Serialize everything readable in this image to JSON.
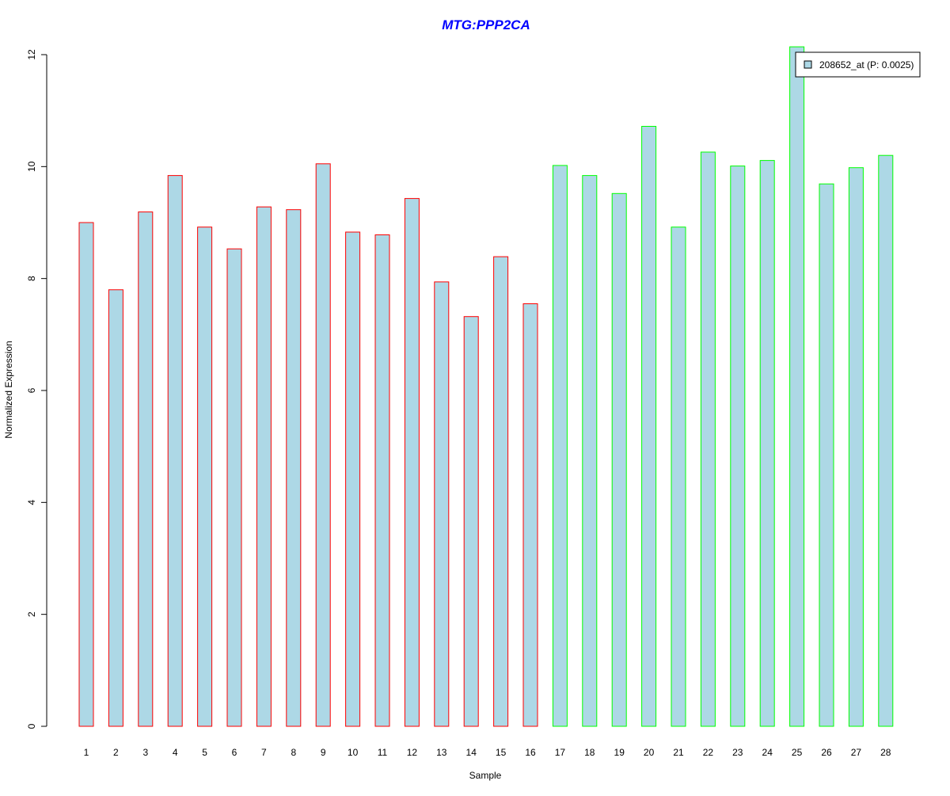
{
  "colors": {
    "title": "#0000FF",
    "bar_fill": "#ADD8E6",
    "group_1_border": "#FF0000",
    "group_2_border": "#00FF00",
    "axis": "#000000"
  },
  "chart_data": {
    "type": "bar",
    "title": "MTG:PPP2CA",
    "xlabel": "Sample",
    "ylabel": "Normalized Expression",
    "ylim": [
      0,
      12
    ],
    "y_ticks": [
      0,
      2,
      4,
      6,
      8,
      10,
      12
    ],
    "grid": false,
    "legend_position": "top-right",
    "categories": [
      "1",
      "2",
      "3",
      "4",
      "5",
      "6",
      "7",
      "8",
      "9",
      "10",
      "11",
      "12",
      "13",
      "14",
      "15",
      "16",
      "17",
      "18",
      "19",
      "20",
      "21",
      "22",
      "23",
      "24",
      "25",
      "26",
      "27",
      "28"
    ],
    "series": [
      {
        "name": "208652_at (P: 0.0025)",
        "values": [
          9.0,
          7.8,
          9.19,
          9.84,
          8.92,
          8.53,
          9.28,
          9.23,
          10.05,
          8.83,
          8.78,
          9.43,
          7.94,
          7.32,
          8.39,
          7.55,
          10.02,
          9.84,
          9.52,
          10.72,
          8.92,
          10.26,
          10.01,
          10.11,
          12.14,
          9.69,
          9.98,
          10.2
        ]
      }
    ],
    "bar_groups": [
      {
        "from": 1,
        "to": 16,
        "border_color": "#FF0000"
      },
      {
        "from": 17,
        "to": 28,
        "border_color": "#00FF00"
      }
    ]
  }
}
